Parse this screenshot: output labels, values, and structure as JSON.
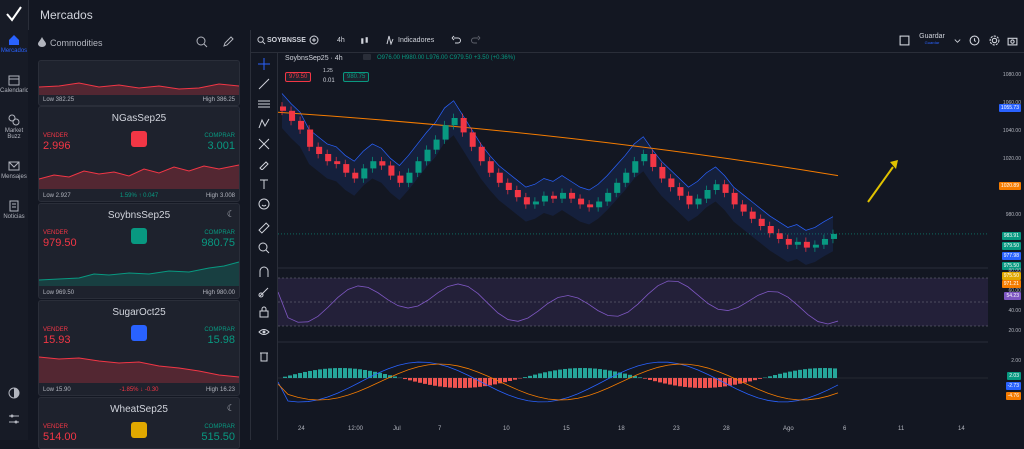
{
  "app": {
    "title": "Mercados"
  },
  "nav": [
    {
      "label": "Mercados",
      "icon": "home-icon"
    },
    {
      "label": "Calendario",
      "icon": "calendar-icon"
    },
    {
      "label": "Market Buzz",
      "icon": "buzz-icon"
    },
    {
      "label": "Mensajes",
      "icon": "mail-icon"
    },
    {
      "label": "Noticias",
      "icon": "news-icon"
    }
  ],
  "panel": {
    "category": "Commodities"
  },
  "cards": [
    {
      "name": "",
      "low": "Low 382.25",
      "high": "High 386.25"
    },
    {
      "name": "NGasSep25",
      "sell_label": "VENDER",
      "buy_label": "COMPRAR",
      "sell": "2.996",
      "buy": "3.001",
      "change": "1.59% ↑ 0.047",
      "change_color": "#089981",
      "low": "Low 2.927",
      "high": "High 3.008",
      "badge": "#f23645"
    },
    {
      "name": "SoybnsSep25",
      "sell_label": "VENDER",
      "buy_label": "COMPRAR",
      "sell": "979.50",
      "buy": "980.75",
      "change": "",
      "change_color": "#089981",
      "low": "Low 969.50",
      "high": "High 980.00",
      "badge": "#089981"
    },
    {
      "name": "SugarOct25",
      "sell_label": "VENDER",
      "buy_label": "COMPRAR",
      "sell": "15.93",
      "buy": "15.98",
      "change": "-1.85% ↓ -0.30",
      "change_color": "#f23645",
      "low": "Low 15.90",
      "high": "High 16.23",
      "badge": "#2962ff"
    },
    {
      "name": "WheatSep25",
      "sell_label": "VENDER",
      "buy_label": "COMPRAR",
      "sell": "514.00",
      "buy": "515.50",
      "change": "",
      "change_color": "#f23645",
      "low": "",
      "high": "",
      "badge": "#e0a800"
    }
  ],
  "toolbar": {
    "symbol": "SOYBNSSE",
    "interval": "4h",
    "indicators": "Indicadores",
    "save": "Guardar",
    "save_sub": "Guardar"
  },
  "chart_header": {
    "title": "SoybnsSep25 · 4h",
    "ohlc": "O976.00 H980.00 L976.00 C979.50 +3.50 (+0.36%)",
    "sell_box": "979.50",
    "spread_top": "1.25",
    "spread_bot": "0.01",
    "buy_box": "980.75"
  },
  "price_axis": [
    "1080.00",
    "1060.00",
    "1040.00",
    "1020.00",
    "1000.00",
    "980.00"
  ],
  "price_tags": [
    {
      "text": "1055.73",
      "color": "#2962ff"
    },
    {
      "text": "1020.89",
      "color": "#f57c00"
    },
    {
      "text": "983.91",
      "color": "#089981"
    },
    {
      "text": "979.50",
      "color": "#089981"
    },
    {
      "text": "977.98",
      "color": "#2962ff"
    },
    {
      "text": "975.50",
      "color": "#089981"
    },
    {
      "text": "975.50",
      "color": "#e0a800"
    },
    {
      "text": "971.21",
      "color": "#f57c00"
    }
  ],
  "rsi_axis": [
    "80.00",
    "60.00",
    "40.00",
    "20.00"
  ],
  "rsi_tag": "54.23",
  "macd_axis": [
    "2.00"
  ],
  "macd_tags": [
    {
      "text": "2.03",
      "color": "#089981"
    },
    {
      "text": "-2.73",
      "color": "#2962ff"
    },
    {
      "text": "-4.76",
      "color": "#f57c00"
    }
  ],
  "time_axis": [
    "24",
    "12:00",
    "Jul",
    "7",
    "10",
    "15",
    "18",
    "23",
    "28",
    "Ago",
    "6",
    "11",
    "14"
  ],
  "chart_data": {
    "type": "candlestick",
    "title": "SoybnsSep25 · 4h",
    "y_range": [
      960,
      1085
    ],
    "close": [
      1065,
      1058,
      1052,
      1040,
      1035,
      1030,
      1028,
      1022,
      1018,
      1025,
      1030,
      1027,
      1020,
      1015,
      1022,
      1030,
      1038,
      1045,
      1055,
      1060,
      1050,
      1040,
      1030,
      1022,
      1015,
      1010,
      1005,
      1000,
      1002,
      1006,
      1004,
      1008,
      1004,
      1000,
      998,
      1002,
      1008,
      1015,
      1022,
      1030,
      1035,
      1026,
      1018,
      1012,
      1006,
      1000,
      1004,
      1010,
      1014,
      1008,
      1000,
      995,
      990,
      985,
      980,
      976,
      972,
      974,
      970,
      972,
      976,
      979.5
    ],
    "rsi": {
      "range": [
        20,
        80
      ],
      "last": 54.23
    },
    "macd": {
      "last": 2.03,
      "signal": -2.73,
      "line": -4.76
    }
  }
}
